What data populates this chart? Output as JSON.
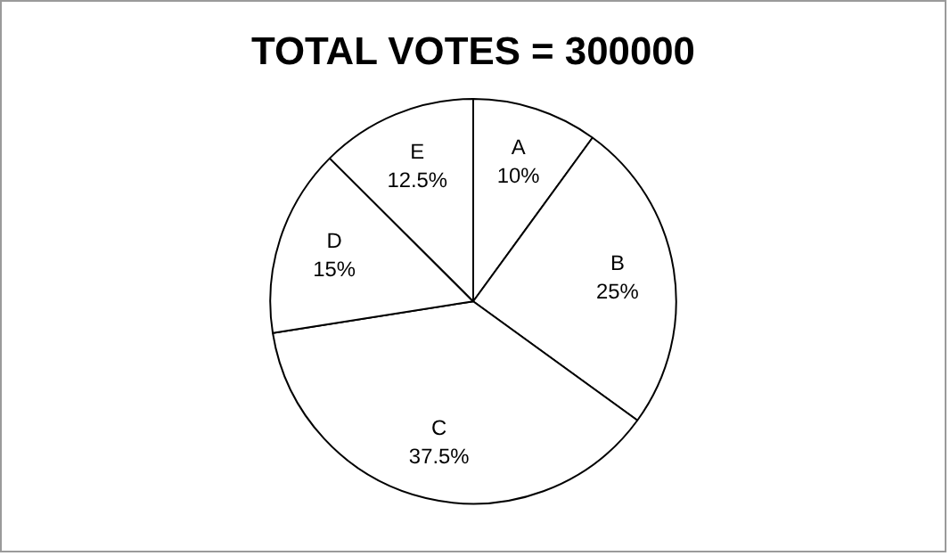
{
  "chart_data": {
    "type": "pie",
    "title": "TOTAL VOTES = 300000",
    "categories": [
      "A",
      "B",
      "C",
      "D",
      "E"
    ],
    "values": [
      10,
      25,
      37.5,
      15,
      12.5
    ],
    "colors": [
      "#ffffff",
      "#ffffff",
      "#ffffff",
      "#ffffff",
      "#ffffff"
    ],
    "value_labels": [
      "10%",
      "25%",
      "37.5%",
      "15%",
      "12.5%"
    ],
    "legend": false
  }
}
